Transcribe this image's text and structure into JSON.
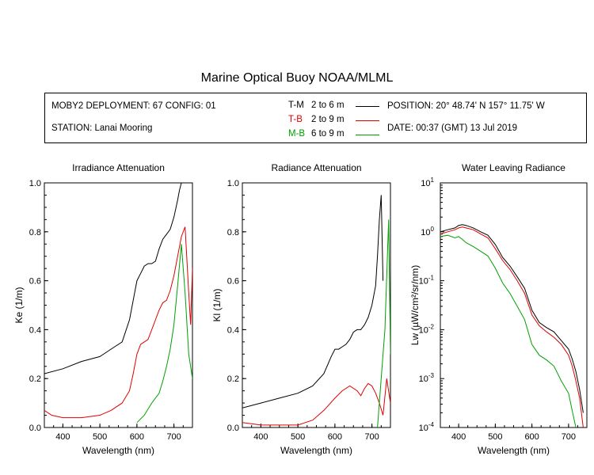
{
  "title": "Marine Optical Buoy NOAA/MLML",
  "info": {
    "deployment": "MOBY2 DEPLOYMENT: 67 CONFIG: 01",
    "station": "STATION: Lanai Mooring",
    "position": "POSITION: 20° 48.74' N   157° 11.75' W",
    "date": "DATE: 00:37 (GMT) 13 Jul 2019",
    "legend": [
      {
        "code": "T-M",
        "range": "2 to 6  m",
        "color": "#000000"
      },
      {
        "code": "T-B",
        "range": "2 to 9  m",
        "color": "#e00000"
      },
      {
        "code": "M-B",
        "range": "6 to 9  m",
        "color": "#00a000"
      }
    ]
  },
  "chart_data": [
    {
      "type": "line",
      "title": "Irradiance Attenuation",
      "xlabel": "Wavelength (nm)",
      "ylabel": "Ke  (1/m)",
      "xlim": [
        350,
        750
      ],
      "ylim": [
        0,
        1.0
      ],
      "xticks": [
        400,
        500,
        600,
        700
      ],
      "yticks": [
        0.0,
        0.2,
        0.4,
        0.6,
        0.8,
        1.0
      ],
      "ytick_labels": [
        "0.0",
        "0.2",
        "0.4",
        "0.6",
        "0.8",
        "1.0"
      ],
      "series": [
        {
          "code": "T-M",
          "color": "#000000",
          "x": [
            350,
            400,
            450,
            500,
            540,
            560,
            580,
            590,
            600,
            610,
            620,
            630,
            640,
            650,
            660,
            670,
            680,
            690,
            700,
            710,
            715,
            720
          ],
          "y": [
            0.22,
            0.24,
            0.27,
            0.29,
            0.33,
            0.35,
            0.44,
            0.52,
            0.6,
            0.63,
            0.66,
            0.67,
            0.67,
            0.68,
            0.73,
            0.77,
            0.79,
            0.81,
            0.86,
            0.93,
            0.97,
            1.0
          ]
        },
        {
          "code": "T-B",
          "color": "#e00000",
          "x": [
            350,
            370,
            400,
            450,
            500,
            530,
            560,
            580,
            590,
            600,
            610,
            620,
            630,
            640,
            650,
            660,
            670,
            680,
            690,
            700,
            710,
            720,
            730,
            740,
            745,
            750
          ],
          "y": [
            0.07,
            0.05,
            0.04,
            0.04,
            0.05,
            0.07,
            0.1,
            0.15,
            0.22,
            0.3,
            0.34,
            0.35,
            0.36,
            0.4,
            0.44,
            0.48,
            0.51,
            0.52,
            0.56,
            0.62,
            0.7,
            0.78,
            0.82,
            0.55,
            0.42,
            0.65
          ]
        },
        {
          "code": "M-B",
          "color": "#00a000",
          "x": [
            600,
            620,
            640,
            660,
            670,
            680,
            690,
            700,
            710,
            720,
            730,
            740,
            750
          ],
          "y": [
            0.02,
            0.05,
            0.1,
            0.14,
            0.19,
            0.25,
            0.32,
            0.42,
            0.58,
            0.75,
            0.55,
            0.3,
            0.2
          ]
        }
      ]
    },
    {
      "type": "line",
      "title": "Radiance Attenuation",
      "xlabel": "Wavelength (nm)",
      "ylabel": "Kl  (1/m)",
      "xlim": [
        350,
        750
      ],
      "ylim": [
        0,
        1.0
      ],
      "xticks": [
        400,
        500,
        600,
        700
      ],
      "yticks": [
        0.0,
        0.2,
        0.4,
        0.6,
        0.8,
        1.0
      ],
      "ytick_labels": [
        "0.0",
        "0.2",
        "0.4",
        "0.6",
        "0.8",
        "1.0"
      ],
      "series": [
        {
          "code": "T-M",
          "color": "#000000",
          "x": [
            350,
            400,
            450,
            500,
            540,
            570,
            590,
            600,
            610,
            620,
            630,
            640,
            650,
            660,
            670,
            680,
            690,
            700,
            710,
            715,
            720,
            725,
            730
          ],
          "y": [
            0.08,
            0.1,
            0.12,
            0.14,
            0.17,
            0.22,
            0.29,
            0.32,
            0.32,
            0.33,
            0.34,
            0.36,
            0.39,
            0.4,
            0.4,
            0.42,
            0.45,
            0.5,
            0.58,
            0.7,
            0.85,
            0.95,
            0.6
          ]
        },
        {
          "code": "T-B",
          "color": "#e00000",
          "x": [
            350,
            400,
            450,
            500,
            540,
            570,
            600,
            620,
            640,
            660,
            670,
            680,
            690,
            700,
            710,
            720,
            730,
            740,
            750
          ],
          "y": [
            0.02,
            0.01,
            0.01,
            0.01,
            0.03,
            0.07,
            0.12,
            0.15,
            0.17,
            0.15,
            0.13,
            0.16,
            0.18,
            0.17,
            0.14,
            0.1,
            0.05,
            0.2,
            0.1
          ]
        },
        {
          "code": "M-B",
          "color": "#00a000",
          "x": [
            715,
            725,
            735,
            745,
            750
          ],
          "y": [
            0.0,
            0.2,
            0.4,
            0.85,
            0.3
          ]
        }
      ]
    },
    {
      "type": "line",
      "title": "Water Leaving Radiance",
      "xlabel": "Wavelength (nm)",
      "ylabel": "Lw  (µW/cm²/sr/nm)",
      "yscale": "log",
      "xlim": [
        350,
        750
      ],
      "ylim": [
        0.0001,
        10
      ],
      "xticks": [
        400,
        500,
        600,
        700
      ],
      "yticks": [
        0.0001,
        0.001,
        0.01,
        0.1,
        1,
        10
      ],
      "ytick_labels": [
        [
          "10",
          "-4"
        ],
        [
          "10",
          "-3"
        ],
        [
          "10",
          "-2"
        ],
        [
          "10",
          "-1"
        ],
        [
          "10",
          "0"
        ],
        [
          "10",
          "1"
        ]
      ],
      "series": [
        {
          "code": "T-M",
          "color": "#000000",
          "x": [
            350,
            370,
            390,
            400,
            410,
            420,
            440,
            460,
            480,
            500,
            520,
            540,
            560,
            580,
            600,
            620,
            640,
            660,
            680,
            700,
            710,
            720,
            730,
            740
          ],
          "y": [
            1.0,
            1.1,
            1.2,
            1.35,
            1.4,
            1.35,
            1.2,
            1.0,
            0.85,
            0.55,
            0.3,
            0.2,
            0.12,
            0.07,
            0.025,
            0.014,
            0.011,
            0.009,
            0.006,
            0.004,
            0.0025,
            0.0014,
            0.0006,
            0.0002
          ]
        },
        {
          "code": "T-B",
          "color": "#e00000",
          "x": [
            350,
            370,
            390,
            400,
            410,
            420,
            440,
            460,
            480,
            500,
            520,
            540,
            560,
            580,
            600,
            620,
            640,
            660,
            680,
            700,
            710,
            720,
            730,
            740
          ],
          "y": [
            0.9,
            1.0,
            1.1,
            1.2,
            1.25,
            1.2,
            1.1,
            0.9,
            0.75,
            0.45,
            0.26,
            0.17,
            0.1,
            0.055,
            0.02,
            0.012,
            0.009,
            0.007,
            0.005,
            0.003,
            0.0018,
            0.0009,
            0.0004,
            0.0001
          ]
        },
        {
          "code": "M-B",
          "color": "#00a000",
          "x": [
            350,
            370,
            390,
            400,
            410,
            420,
            440,
            460,
            480,
            500,
            520,
            540,
            560,
            580,
            600,
            620,
            640,
            660,
            680,
            700,
            710,
            720
          ],
          "y": [
            0.8,
            0.85,
            0.75,
            0.8,
            0.7,
            0.6,
            0.5,
            0.4,
            0.32,
            0.18,
            0.09,
            0.055,
            0.03,
            0.016,
            0.005,
            0.003,
            0.0024,
            0.0018,
            0.0009,
            0.0005,
            0.00022,
            0.0001
          ]
        }
      ]
    }
  ]
}
